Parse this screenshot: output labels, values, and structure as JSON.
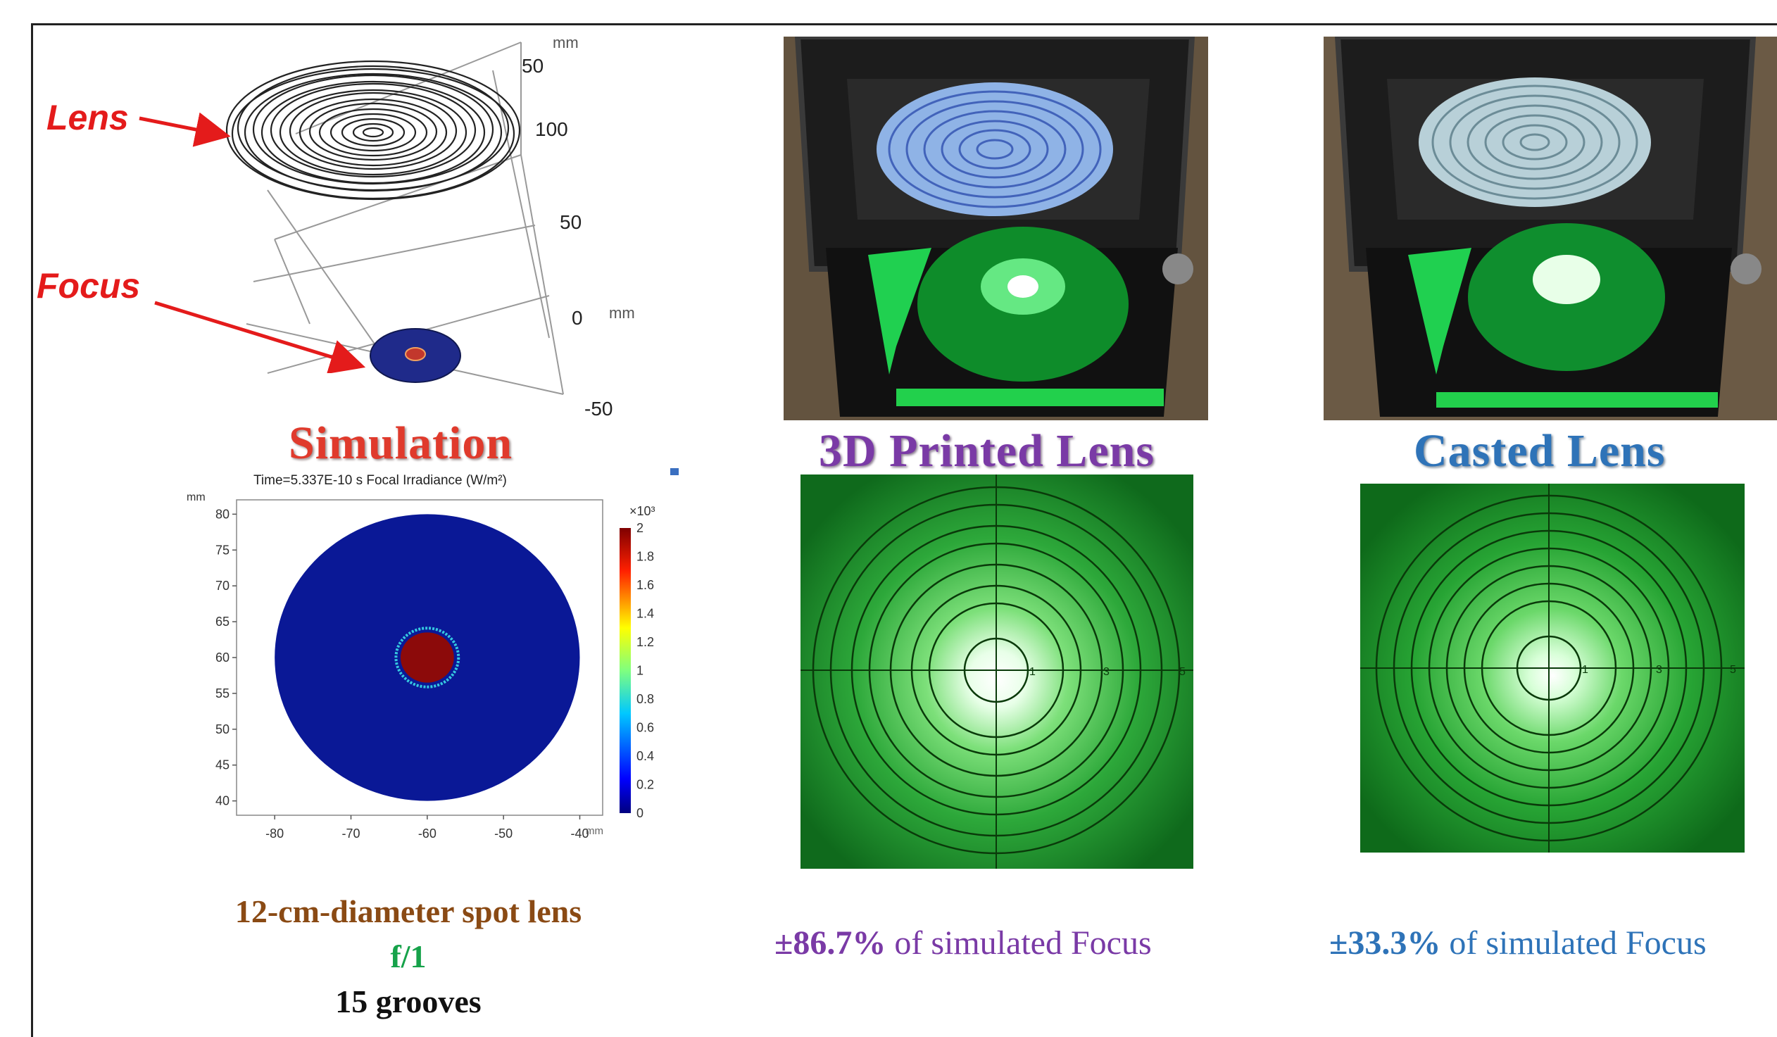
{
  "model": {
    "lens_label": "Lens",
    "focus_label": "Focus",
    "axis_unit": "mm",
    "axis_numbers": [
      "50",
      "100",
      "50",
      "0",
      "-50"
    ],
    "axis_unit2": "mm"
  },
  "simulation": {
    "heading": "Simulation",
    "plot_title": "Time=5.337E-10 s  Focal Irradiance (W/m²)",
    "y_unit": "mm",
    "x_unit": "mm",
    "colorbar_exponent": "×10³"
  },
  "chart_data": {
    "type": "heatmap",
    "title": "Time=5.337E-10 s  Focal Irradiance (W/m²)",
    "xlabel": "mm",
    "ylabel": "mm",
    "x_ticks": [
      "-80",
      "-70",
      "-60",
      "-50",
      "-40"
    ],
    "y_ticks": [
      "80",
      "75",
      "70",
      "65",
      "60",
      "55",
      "50",
      "45",
      "40"
    ],
    "xlim": [
      -85,
      -37
    ],
    "ylim": [
      38,
      82
    ],
    "colorbar_ticks": [
      "2",
      "1.8",
      "1.6",
      "1.4",
      "1.2",
      "1",
      "0.8",
      "0.6",
      "0.4",
      "0.2",
      "0"
    ],
    "colorbar_range": [
      0,
      2
    ],
    "colorbar_multiplier": "×10³",
    "lens_disk": {
      "center_x": -60,
      "center_y": 60,
      "radius": 20,
      "value": 0
    },
    "hot_spot": {
      "center_x": -60,
      "center_y": 60,
      "radius": 3.5,
      "value": 2
    },
    "colors": {
      "background": "#0a1896",
      "hot": "#8c0a0a",
      "ring": "#35c8e0"
    }
  },
  "printed": {
    "heading": "3D Printed Lens",
    "pct_value": "±86.7%",
    "pct_text": " of simulated Focus"
  },
  "casted": {
    "heading": "Casted Lens",
    "pct_value": "±33.3%",
    "pct_text": " of simulated Focus"
  },
  "specs": {
    "line1": "12-cm-diameter spot lens",
    "line2": "f/1",
    "line3": "15 grooves"
  },
  "target_labels": [
    "1",
    "3",
    "5"
  ],
  "colors": {
    "simulation_heading": "#e03a2c",
    "printed_heading": "#7a3aa6",
    "casted_heading": "#2e73b8",
    "spec1": "#8a4a14",
    "spec2": "#16a24a",
    "spec3": "#111111",
    "printed_pct": "#7a3aa6",
    "casted_pct": "#2e73b8",
    "arrow": "#e41b1b"
  }
}
